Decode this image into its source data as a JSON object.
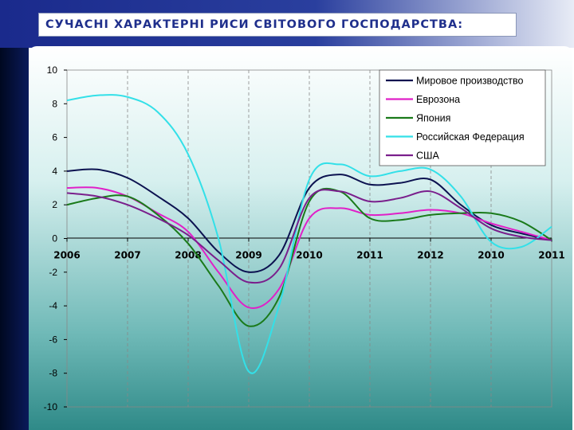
{
  "slide": {
    "title": "СУЧАСНІ ХАРАКТЕРНІ РИСИ СВІТОВОГО ГОСПОДАРСТВА:",
    "colors": {
      "band": "#1a2a8c",
      "band_dark": "#06123a",
      "title_text": "#1f2f8c"
    }
  },
  "chart_data": {
    "type": "line",
    "title": "",
    "xlabel": "",
    "ylabel": "",
    "x_tick_labels": [
      "2006",
      "2007",
      "2008",
      "2009",
      "2010",
      "2011",
      "2012",
      "2010",
      "2011"
    ],
    "y_ticks": [
      10,
      8,
      6,
      4,
      2,
      0,
      -2,
      -4,
      -6,
      -8,
      -10
    ],
    "y_tick_labels": [
      "10",
      "8",
      "6",
      "4",
      "2",
      "0",
      "-2",
      "-4",
      "-6",
      "-8",
      "-10"
    ],
    "ylim": [
      -10,
      10
    ],
    "x_range": [
      0,
      8
    ],
    "grid": "vertical dashed",
    "legend_position": "top-right",
    "series": [
      {
        "name": "Мировое производство",
        "color": "#0c1250",
        "x": [
          0,
          0.5,
          1,
          1.5,
          2,
          2.5,
          3,
          3.5,
          4,
          4.5,
          5,
          5.5,
          6,
          6.5,
          7,
          7.5,
          8
        ],
        "y": [
          4,
          4.1,
          3.6,
          2.5,
          1.2,
          -0.8,
          -2,
          -1,
          3,
          3.8,
          3.2,
          3.3,
          3.5,
          2,
          0.8,
          0.3,
          -0.1
        ]
      },
      {
        "name": "Еврозона",
        "color": "#e020c8",
        "x": [
          0,
          0.5,
          1,
          1.5,
          2,
          2.5,
          3,
          3.5,
          4,
          4.5,
          5,
          5.5,
          6,
          6.5,
          7,
          7.5,
          8
        ],
        "y": [
          3,
          3,
          2.5,
          1.5,
          0.4,
          -2,
          -4.1,
          -3,
          1.2,
          1.8,
          1.4,
          1.5,
          1.7,
          1.5,
          0.9,
          0.4,
          -0.1
        ]
      },
      {
        "name": "Япония",
        "color": "#1a7a1a",
        "x": [
          0,
          0.5,
          1,
          1.5,
          2,
          2.5,
          3,
          3.5,
          4,
          4.5,
          5,
          5.5,
          6,
          6.5,
          7,
          7.5,
          8
        ],
        "y": [
          2,
          2.4,
          2.5,
          1.4,
          -0.3,
          -2.8,
          -5.2,
          -3.5,
          2.2,
          2.8,
          1.2,
          1.1,
          1.4,
          1.5,
          1.5,
          1,
          -0.1
        ]
      },
      {
        "name": "Российская Федерация",
        "color": "#33e0e8",
        "x": [
          0,
          0.5,
          1,
          1.5,
          2,
          2.5,
          3,
          3.5,
          4,
          4.5,
          5,
          5.5,
          6,
          6.5,
          7,
          7.5,
          8
        ],
        "y": [
          8.2,
          8.5,
          8.4,
          7.5,
          5,
          0,
          -7.9,
          -4,
          3.5,
          4.4,
          3.7,
          4,
          4.1,
          2.5,
          -0.2,
          -0.5,
          0.7
        ]
      },
      {
        "name": "США",
        "color": "#7a1f8c",
        "x": [
          0,
          0.5,
          1,
          1.5,
          2,
          2.5,
          3,
          3.5,
          4,
          4.5,
          5,
          5.5,
          6,
          6.5,
          7,
          7.5,
          8
        ],
        "y": [
          2.7,
          2.5,
          2,
          1.2,
          0.2,
          -1.3,
          -2.6,
          -1.8,
          2.4,
          2.8,
          2.2,
          2.4,
          2.8,
          1.8,
          0.6,
          0.1,
          -0.1
        ]
      }
    ]
  }
}
